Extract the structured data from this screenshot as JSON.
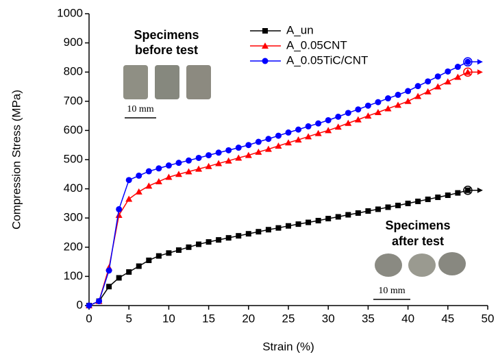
{
  "chart_data": {
    "type": "line",
    "xlabel": "Strain (%)",
    "ylabel": "Compression Stress (MPa)",
    "x": [
      0,
      1.25,
      2.5,
      3.75,
      5,
      6.25,
      7.5,
      8.75,
      10,
      11.25,
      12.5,
      13.75,
      15,
      16.25,
      17.5,
      18.75,
      20,
      21.25,
      22.5,
      23.75,
      25,
      26.25,
      27.5,
      28.75,
      30,
      31.25,
      32.5,
      33.75,
      35,
      36.25,
      37.5,
      38.75,
      40,
      41.25,
      42.5,
      43.75,
      45,
      46.25,
      47.5
    ],
    "series": [
      {
        "name": "A_un",
        "color": "#000000",
        "marker": "square",
        "values": [
          0,
          15,
          65,
          95,
          115,
          135,
          155,
          170,
          180,
          190,
          200,
          210,
          218,
          225,
          232,
          239,
          246,
          253,
          260,
          266,
          273,
          279,
          285,
          291,
          298,
          304,
          311,
          317,
          324,
          330,
          337,
          343,
          350,
          357,
          364,
          371,
          378,
          386,
          395
        ]
      },
      {
        "name": "A_0.05CNT",
        "color": "#ff0000",
        "marker": "triangle",
        "values": [
          0,
          15,
          130,
          310,
          365,
          390,
          410,
          425,
          440,
          450,
          459,
          468,
          477,
          487,
          496,
          506,
          515,
          526,
          536,
          547,
          558,
          568,
          579,
          590,
          600,
          612,
          625,
          637,
          650,
          662,
          675,
          687,
          700,
          717,
          733,
          750,
          767,
          783,
          800
        ]
      },
      {
        "name": "A_0.05TiC/CNT",
        "color": "#0000ff",
        "marker": "circle",
        "values": [
          0,
          15,
          120,
          330,
          430,
          445,
          460,
          470,
          480,
          489,
          497,
          506,
          515,
          524,
          532,
          541,
          550,
          561,
          571,
          582,
          593,
          603,
          614,
          624,
          635,
          647,
          660,
          672,
          685,
          697,
          710,
          722,
          735,
          752,
          768,
          785,
          802,
          818,
          835
        ]
      }
    ],
    "xlim": [
      0,
      50
    ],
    "xticks": [
      0,
      5,
      10,
      15,
      20,
      25,
      30,
      35,
      40,
      45,
      50
    ],
    "ylim": [
      0,
      1000
    ],
    "yticks": [
      0,
      100,
      200,
      300,
      400,
      500,
      600,
      700,
      800,
      900,
      1000
    ],
    "annotations": [
      "Specimens",
      "before test",
      "10 mm",
      "Specimens",
      "after test",
      "10 mm"
    ]
  }
}
